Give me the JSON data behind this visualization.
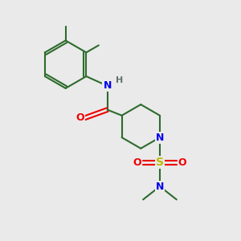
{
  "background_color": "#eaeaea",
  "bond_color": "#2d6b2d",
  "atom_colors": {
    "N": "#0000ee",
    "O": "#ee0000",
    "S": "#bbbb00",
    "H": "#607070",
    "C": "#2d6b2d"
  },
  "figsize": [
    3.0,
    3.0
  ],
  "dpi": 100
}
